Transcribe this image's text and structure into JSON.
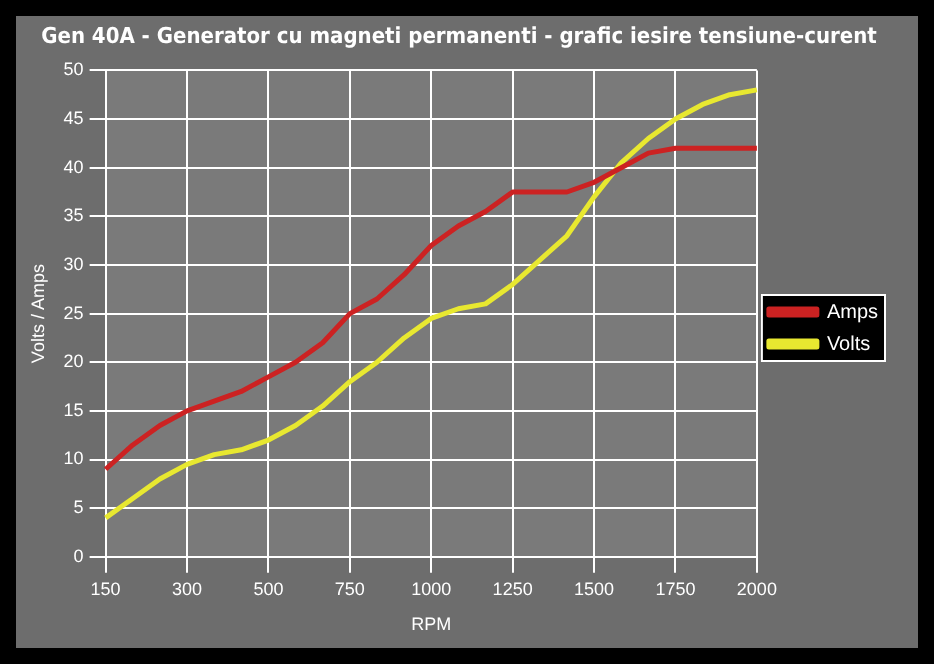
{
  "chart_data": {
    "type": "line",
    "title": "Gen 40A - Generator cu magneti permanenti - grafic iesire tensiune-curent",
    "xlabel": "RPM",
    "ylabel": "Volts / Amps",
    "categories": [
      "150",
      null,
      null,
      "300",
      null,
      null,
      "500",
      null,
      null,
      "750",
      null,
      null,
      "1000",
      null,
      null,
      "1250",
      null,
      null,
      "1500",
      null,
      null,
      "1750",
      null,
      null,
      "2000"
    ],
    "series": [
      {
        "name": "Amps",
        "color": "#cc2222",
        "values": [
          9,
          11.5,
          13.5,
          15,
          16,
          17,
          18.5,
          20,
          22,
          25,
          26.5,
          29,
          32,
          34,
          35.5,
          37.5,
          37.5,
          37.5,
          38.5,
          40,
          41.5,
          42,
          42,
          42,
          42
        ]
      },
      {
        "name": "Volts",
        "color": "#e8e830",
        "values": [
          4,
          6,
          8,
          9.5,
          10.5,
          11,
          12,
          13.5,
          15.5,
          18,
          20,
          22.5,
          24.5,
          25.5,
          26,
          28,
          30.5,
          33,
          37,
          40.5,
          43,
          45,
          46.5,
          47.5,
          48
        ]
      }
    ],
    "ylim": [
      0,
      50
    ],
    "yticks": [
      0,
      5,
      10,
      15,
      20,
      25,
      30,
      35,
      40,
      45,
      50
    ],
    "grid": true,
    "legend": "right",
    "marker": "none",
    "line_style": "solid"
  }
}
